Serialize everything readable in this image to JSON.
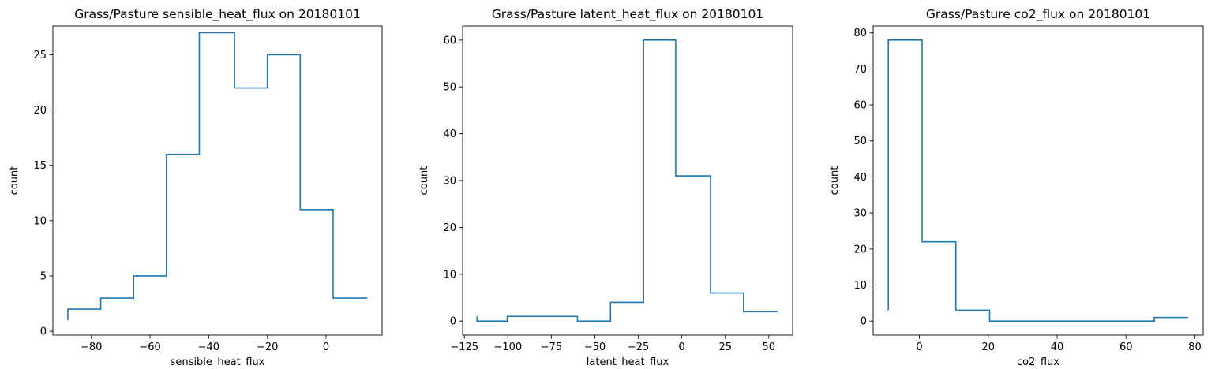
{
  "chart_data": [
    {
      "type": "histogram-step",
      "title": "Grass/Pasture sensible_heat_flux on 20180101",
      "xlabel": "sensible_heat_flux",
      "ylabel": "count",
      "xlim": [
        -93.1,
        19.1
      ],
      "ylim": [
        -0.35,
        27.6
      ],
      "xticks": [
        -80,
        -60,
        -40,
        -20,
        0
      ],
      "xtick_labels": [
        "−80",
        "−60",
        "−40",
        "−20",
        "0"
      ],
      "yticks": [
        0,
        5,
        10,
        15,
        20,
        25
      ],
      "ytick_labels": [
        "0",
        "5",
        "10",
        "15",
        "20",
        "25"
      ],
      "bin_edges": [
        -88,
        -76.8,
        -65.6,
        -54.4,
        -43.2,
        -31.2,
        -20.0,
        -8.8,
        2.4,
        14
      ],
      "counts": [
        2,
        3,
        5,
        16,
        27,
        22,
        25,
        11,
        3
      ],
      "color": "#1f77b4"
    },
    {
      "type": "histogram-step",
      "title": "Grass/Pasture latent_heat_flux on 20180101",
      "xlabel": "latent_heat_flux",
      "ylabel": "count",
      "xlim": [
        -126,
        63.7
      ],
      "ylim": [
        -3,
        63
      ],
      "xticks": [
        -125,
        -100,
        -75,
        -50,
        -25,
        0,
        25,
        50
      ],
      "xtick_labels": [
        "−125",
        "−100",
        "−75",
        "−50",
        "−25",
        "0",
        "25",
        "50"
      ],
      "yticks": [
        0,
        10,
        20,
        30,
        40,
        50,
        60
      ],
      "ytick_labels": [
        "0",
        "10",
        "20",
        "30",
        "40",
        "50",
        "60"
      ],
      "bin_edges": [
        -117.7,
        -100.3,
        -79.6,
        -60.0,
        -41.0,
        -22.0,
        -3.5,
        16.5,
        35.5,
        55
      ],
      "counts": [
        0,
        1,
        1,
        0,
        4,
        60,
        31,
        6,
        2
      ],
      "color": "#1f77b4"
    },
    {
      "type": "histogram-step",
      "title": "Grass/Pasture co2_flux on 20180101",
      "xlabel": "co2_flux",
      "ylabel": "count",
      "xlim": [
        -13.4,
        82.4
      ],
      "ylim": [
        -3.9,
        81.9
      ],
      "xticks": [
        0,
        20,
        40,
        60,
        80
      ],
      "xtick_labels": [
        "0",
        "20",
        "40",
        "60",
        "80"
      ],
      "yticks": [
        0,
        10,
        20,
        30,
        40,
        50,
        60,
        70,
        80
      ],
      "ytick_labels": [
        "0",
        "10",
        "20",
        "30",
        "40",
        "50",
        "60",
        "70",
        "80"
      ],
      "bin_edges": [
        -9,
        0.8,
        10.6,
        20.4,
        30.1,
        39.9,
        49.6,
        59.4,
        68.2,
        78
      ],
      "counts": [
        78,
        22,
        3,
        0,
        0,
        0,
        0,
        0,
        1
      ],
      "color": "#1f77b4"
    }
  ]
}
